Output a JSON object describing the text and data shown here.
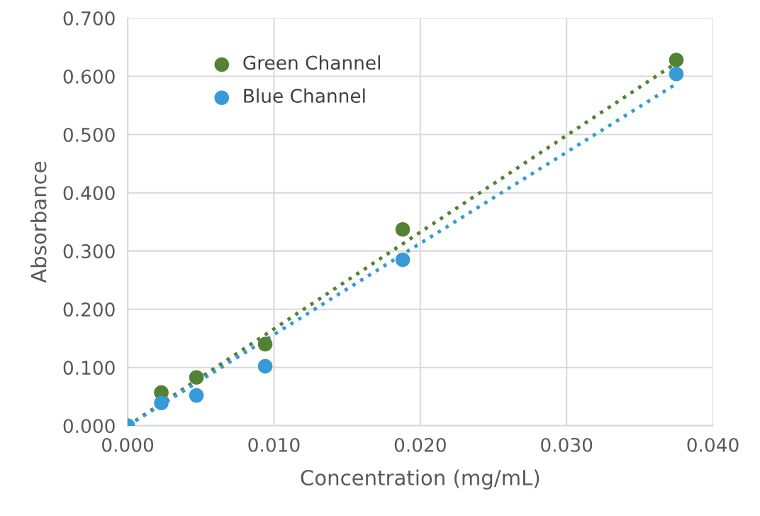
{
  "chart_data": {
    "type": "scatter",
    "xlabel": "Concentration (mg/mL)",
    "ylabel": "Absorbance",
    "xlim": [
      0,
      0.04
    ],
    "xticks": [
      {
        "value": 0,
        "label": "0.000"
      },
      {
        "value": 0.01,
        "label": "0.010"
      },
      {
        "value": 0.02,
        "label": "0.020"
      },
      {
        "value": 0.03,
        "label": "0.030"
      },
      {
        "value": 0.04,
        "label": "0.040"
      }
    ],
    "ylim": [
      0,
      0.7
    ],
    "yticks": [
      {
        "value": 0,
        "label": "0.000"
      },
      {
        "value": 0.1,
        "label": "0.100"
      },
      {
        "value": 0.2,
        "label": "0.200"
      },
      {
        "value": 0.3,
        "label": "0.300"
      },
      {
        "value": 0.4,
        "label": "0.400"
      },
      {
        "value": 0.5,
        "label": "0.500"
      },
      {
        "value": 0.6,
        "label": "0.600"
      },
      {
        "value": 0.7,
        "label": "0.700"
      }
    ],
    "grid": true,
    "legend": "top left",
    "marker": "circle",
    "series": [
      {
        "name": "Green Channel",
        "color": "#548235",
        "x": [
          0,
          0.0023,
          0.0047,
          0.0094,
          0.0188,
          0.0375
        ],
        "values": [
          0,
          0.057,
          0.083,
          0.14,
          0.337,
          0.628
        ]
      },
      {
        "name": "Blue Channel",
        "color": "#379ad8",
        "x": [
          0,
          0.0023,
          0.0047,
          0.0094,
          0.0188,
          0.0375
        ],
        "values": [
          0,
          0.039,
          0.052,
          0.102,
          0.285,
          0.604
        ]
      },
      {
        "type": "line",
        "line_style": "dotted",
        "marker": "none",
        "color": "#548235",
        "x": [
          0,
          0.0375
        ],
        "values": [
          0.0,
          0.623
        ]
      },
      {
        "type": "line",
        "line_style": "dotted",
        "marker": "none",
        "color": "#379ad8",
        "x": [
          0,
          0.0375
        ],
        "values": [
          0.0,
          0.587
        ]
      }
    ]
  }
}
